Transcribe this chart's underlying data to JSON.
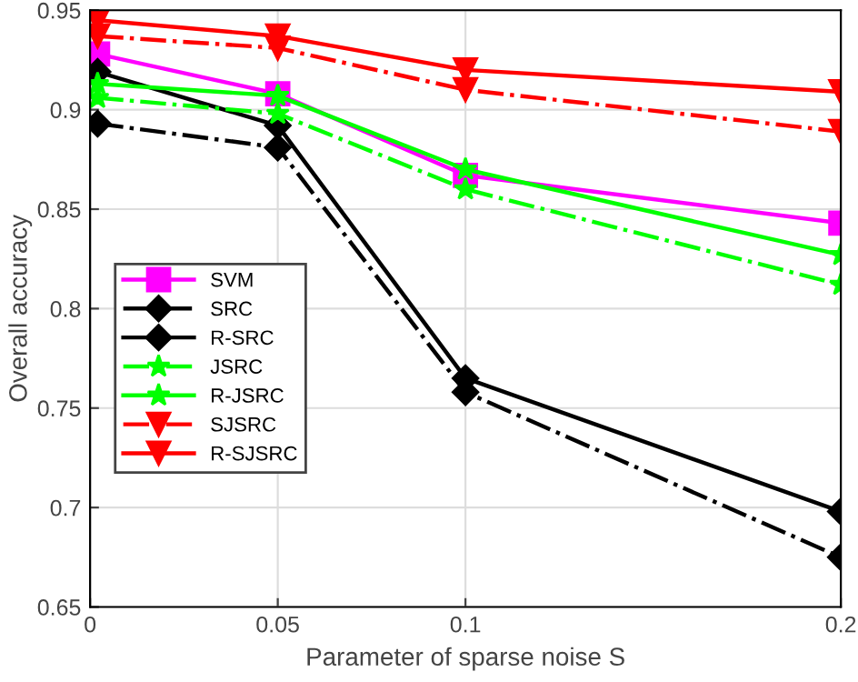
{
  "chart_data": {
    "type": "line",
    "xlabel": "Parameter of sparse noise S",
    "ylabel": "Overall accuracy",
    "x": [
      0.002,
      0.05,
      0.1,
      0.2
    ],
    "xlim": [
      0,
      0.2
    ],
    "xticks": [
      0,
      0.05,
      0.1,
      0.2
    ],
    "ylim": [
      0.65,
      0.95
    ],
    "yticks": [
      0.65,
      0.7,
      0.75,
      0.8,
      0.85,
      0.9,
      0.95
    ],
    "grid": true,
    "legend": "left",
    "series": [
      {
        "name": "SVM",
        "color": "#ff00ff",
        "marker": "square",
        "line_style": "solid",
        "values": [
          0.928,
          0.908,
          0.867,
          0.843
        ]
      },
      {
        "name": "SRC",
        "color": "#000000",
        "marker": "diamond",
        "line_style": "dashdot",
        "values": [
          0.893,
          0.881,
          0.758,
          0.675
        ]
      },
      {
        "name": "R-SRC",
        "color": "#000000",
        "marker": "diamond",
        "line_style": "solid",
        "values": [
          0.919,
          0.892,
          0.765,
          0.698
        ]
      },
      {
        "name": "JSRC",
        "color": "#00ff00",
        "marker": "star",
        "line_style": "dashdot",
        "values": [
          0.906,
          0.898,
          0.86,
          0.812
        ]
      },
      {
        "name": "R-JSRC",
        "color": "#00ff00",
        "marker": "star",
        "line_style": "solid",
        "values": [
          0.913,
          0.907,
          0.87,
          0.827
        ]
      },
      {
        "name": "SJSRC",
        "color": "#ff0000",
        "marker": "triangle",
        "line_style": "dashdot",
        "values": [
          0.937,
          0.931,
          0.91,
          0.889
        ]
      },
      {
        "name": "R-SJSRC",
        "color": "#ff0000",
        "marker": "triangle",
        "line_style": "solid",
        "values": [
          0.945,
          0.937,
          0.92,
          0.909
        ]
      }
    ]
  }
}
